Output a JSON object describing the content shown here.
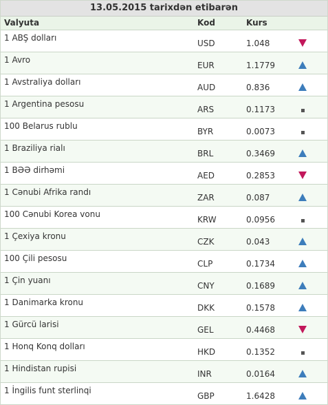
{
  "title": "13.05.2015 tarixdən etibarən",
  "columns": {
    "name": "Valyuta",
    "code": "Kod",
    "rate": "Kurs"
  },
  "rows": [
    {
      "name": "1 ABŞ dolları",
      "code": "USD",
      "rate": "1.048",
      "trend": "down"
    },
    {
      "name": "1 Avro",
      "code": "EUR",
      "rate": "1.1779",
      "trend": "up"
    },
    {
      "name": "1 Avstraliya dolları",
      "code": "AUD",
      "rate": "0.836",
      "trend": "up"
    },
    {
      "name": "1 Argentina pesosu",
      "code": "ARS",
      "rate": "0.1173",
      "trend": "same"
    },
    {
      "name": "100 Belarus rublu",
      "code": "BYR",
      "rate": "0.0073",
      "trend": "same"
    },
    {
      "name": "1 Braziliya rialı",
      "code": "BRL",
      "rate": "0.3469",
      "trend": "up"
    },
    {
      "name": "1 BƏƏ dirhəmi",
      "code": "AED",
      "rate": "0.2853",
      "trend": "down"
    },
    {
      "name": "1 Cənubi Afrika randı",
      "code": "ZAR",
      "rate": "0.087",
      "trend": "up"
    },
    {
      "name": "100 Cənubi Korea vonu",
      "code": "KRW",
      "rate": "0.0956",
      "trend": "same"
    },
    {
      "name": "1 Çexiya kronu",
      "code": "CZK",
      "rate": "0.043",
      "trend": "up"
    },
    {
      "name": "100 Çili pesosu",
      "code": "CLP",
      "rate": "0.1734",
      "trend": "up"
    },
    {
      "name": "1 Çin yuanı",
      "code": "CNY",
      "rate": "0.1689",
      "trend": "up"
    },
    {
      "name": "1 Danimarka kronu",
      "code": "DKK",
      "rate": "0.1578",
      "trend": "up"
    },
    {
      "name": "1 Gürcü larisi",
      "code": "GEL",
      "rate": "0.4468",
      "trend": "down"
    },
    {
      "name": "1 Honq Konq dolları",
      "code": "HKD",
      "rate": "0.1352",
      "trend": "same"
    },
    {
      "name": "1 Hindistan rupisi",
      "code": "INR",
      "rate": "0.0164",
      "trend": "up"
    },
    {
      "name": "1 İngilis funt sterlinqi",
      "code": "GBP",
      "rate": "1.6428",
      "trend": "up"
    }
  ],
  "icons": {
    "up": "arrow-up-icon",
    "down": "arrow-down-icon",
    "same": "unchanged-icon"
  },
  "colors": {
    "up": "#3d7dbb",
    "down": "#c2185b",
    "same": "#555555"
  }
}
